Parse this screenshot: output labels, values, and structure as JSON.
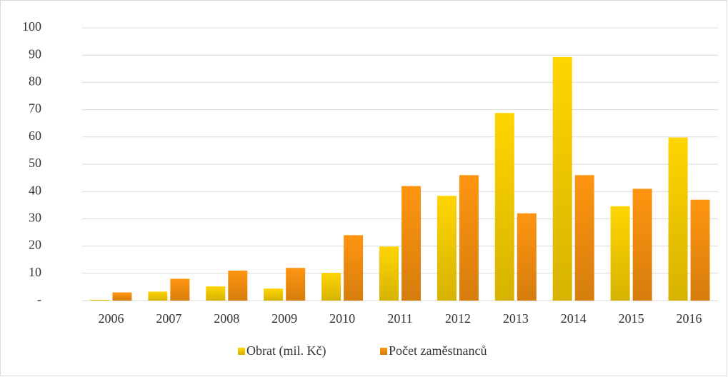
{
  "chart_data": {
    "type": "bar",
    "categories": [
      "2006",
      "2007",
      "2008",
      "2009",
      "2010",
      "2011",
      "2012",
      "2013",
      "2014",
      "2015",
      "2016"
    ],
    "series": [
      {
        "name": "Obrat (mil. Kč)",
        "color": "#ffd500",
        "values": [
          0.3,
          3.3,
          5.2,
          4.4,
          10.2,
          19.8,
          38.4,
          68.8,
          89.3,
          34.6,
          59.8
        ]
      },
      {
        "name": "Počet zaměstnanců",
        "color": "#ff9510",
        "values": [
          3,
          8,
          11,
          12,
          24,
          42,
          46,
          32,
          46,
          41,
          37
        ]
      }
    ],
    "ylim": [
      0,
      100
    ],
    "yticks": [
      {
        "value": 0,
        "label": "-"
      },
      10,
      20,
      30,
      40,
      50,
      60,
      70,
      80,
      90,
      100
    ],
    "grid": true,
    "legend": "bottom"
  }
}
